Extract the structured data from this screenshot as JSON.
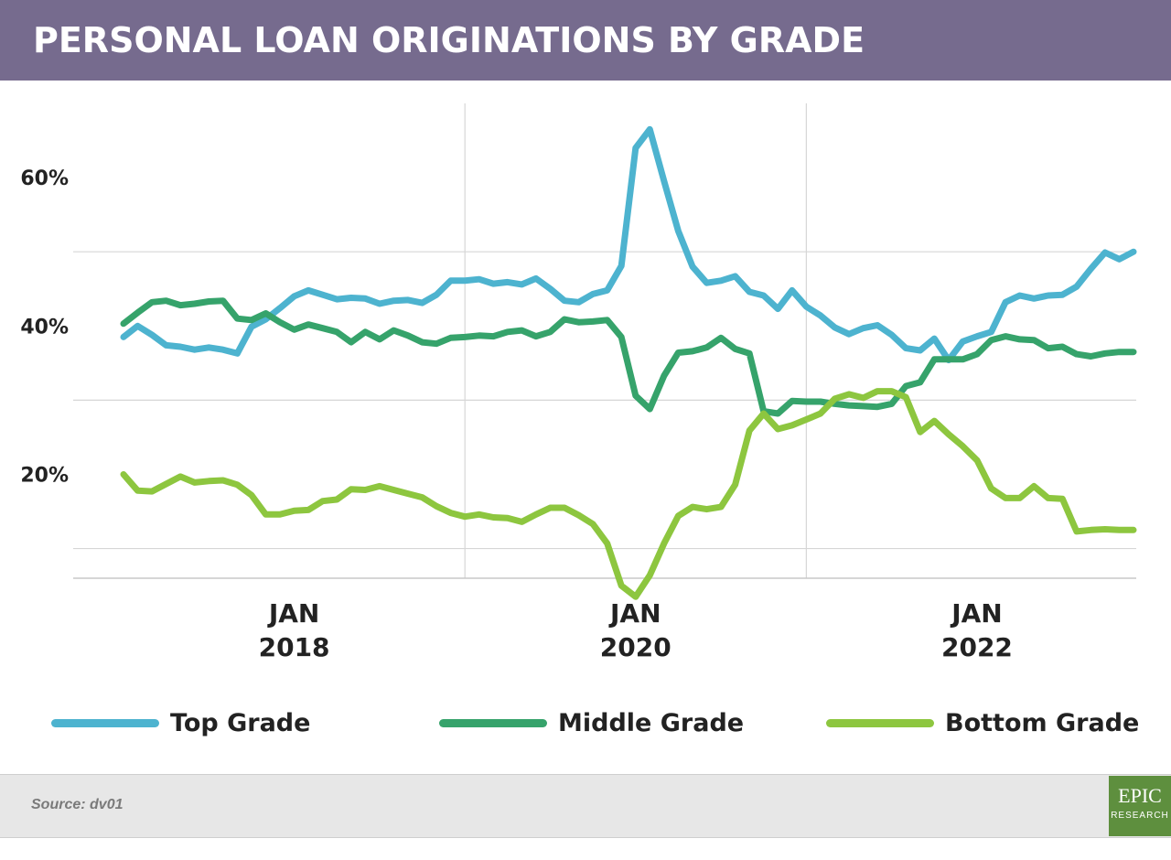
{
  "header": {
    "title": "PERSONAL LOAN ORIGINATIONS BY GRADE"
  },
  "footer": {
    "source": "Source: dv01",
    "logo_top": "EPIC",
    "logo_bottom": "RESEARCH"
  },
  "colors": {
    "header_bg": "#766b8e",
    "top_grade": "#4db3cf",
    "middle_grade": "#36a36b",
    "bottom_grade": "#8dc63f",
    "logo_bg": "#5e8f3e"
  },
  "chart_data": {
    "type": "line",
    "title": "PERSONAL LOAN ORIGINATIONS BY GRADE",
    "xlabel": "",
    "ylabel": "",
    "x_range": [
      "2017-01",
      "2022-12"
    ],
    "ylim": [
      6,
      70
    ],
    "y_ticks": [
      {
        "value": 20,
        "label": "20%"
      },
      {
        "value": 40,
        "label": "40%"
      },
      {
        "value": 60,
        "label": "60%"
      }
    ],
    "x_ticks": [
      {
        "date": "2018-01",
        "label_line1": "JAN",
        "label_line2": "2018"
      },
      {
        "date": "2020-01",
        "label_line1": "JAN",
        "label_line2": "2020"
      },
      {
        "date": "2022-01",
        "label_line1": "JAN",
        "label_line2": "2022"
      }
    ],
    "grid": true,
    "legend_position": "bottom",
    "series": [
      {
        "name": "Top Grade",
        "color": "#4db3cf",
        "x": [
          "2017-01",
          "2017-02",
          "2017-03",
          "2017-04",
          "2017-05",
          "2017-06",
          "2017-07",
          "2017-08",
          "2017-09",
          "2017-10",
          "2017-11",
          "2017-12",
          "2018-01",
          "2018-02",
          "2018-03",
          "2018-04",
          "2018-05",
          "2018-06",
          "2018-07",
          "2018-08",
          "2018-09",
          "2018-10",
          "2018-11",
          "2018-12",
          "2019-01",
          "2019-02",
          "2019-03",
          "2019-04",
          "2019-05",
          "2019-06",
          "2019-07",
          "2019-08",
          "2019-09",
          "2019-10",
          "2019-11",
          "2019-12",
          "2020-01",
          "2020-02",
          "2020-03",
          "2020-04",
          "2020-05",
          "2020-06",
          "2020-07",
          "2020-08",
          "2020-09",
          "2020-10",
          "2020-11",
          "2020-12",
          "2021-01",
          "2021-02",
          "2021-03",
          "2021-04",
          "2021-05",
          "2021-06",
          "2021-07",
          "2021-08",
          "2021-09",
          "2021-10",
          "2021-11",
          "2021-12",
          "2022-01",
          "2022-02",
          "2022-03",
          "2022-04",
          "2022-05",
          "2022-06",
          "2022-07",
          "2022-08",
          "2022-09",
          "2022-10",
          "2022-11",
          "2022-12"
        ],
        "values": [
          38.5,
          40,
          38.8,
          37.4,
          37.2,
          36.8,
          37.1,
          36.8,
          36.3,
          39.9,
          40.9,
          42.4,
          44,
          44.8,
          44.2,
          43.6,
          43.8,
          43.7,
          43,
          43.4,
          43.5,
          43.1,
          44.2,
          46.1,
          46.1,
          46.3,
          45.7,
          45.9,
          45.6,
          46.4,
          45,
          43.4,
          43.2,
          44.3,
          44.8,
          48.1,
          64,
          66.5,
          59.5,
          52.8,
          48,
          45.8,
          46.1,
          46.7,
          44.6,
          44.1,
          42.3,
          44.8,
          42.6,
          41.4,
          39.8,
          38.9,
          39.7,
          40.1,
          38.8,
          37,
          36.7,
          38.3,
          35.4,
          37.9,
          38.6,
          39.2,
          43.2,
          44.1,
          43.7,
          44.1,
          44.2,
          45.3,
          47.7,
          49.9,
          49,
          50
        ]
      },
      {
        "name": "Middle Grade",
        "color": "#36a36b",
        "x": [
          "2017-01",
          "2017-02",
          "2017-03",
          "2017-04",
          "2017-05",
          "2017-06",
          "2017-07",
          "2017-08",
          "2017-09",
          "2017-10",
          "2017-11",
          "2017-12",
          "2018-01",
          "2018-02",
          "2018-03",
          "2018-04",
          "2018-05",
          "2018-06",
          "2018-07",
          "2018-08",
          "2018-09",
          "2018-10",
          "2018-11",
          "2018-12",
          "2019-01",
          "2019-02",
          "2019-03",
          "2019-04",
          "2019-05",
          "2019-06",
          "2019-07",
          "2019-08",
          "2019-09",
          "2019-10",
          "2019-11",
          "2019-12",
          "2020-01",
          "2020-02",
          "2020-03",
          "2020-04",
          "2020-05",
          "2020-06",
          "2020-07",
          "2020-08",
          "2020-09",
          "2020-10",
          "2020-11",
          "2020-12",
          "2021-01",
          "2021-02",
          "2021-03",
          "2021-04",
          "2021-05",
          "2021-06",
          "2021-07",
          "2021-08",
          "2021-09",
          "2021-10",
          "2021-11",
          "2021-12",
          "2022-01",
          "2022-02",
          "2022-03",
          "2022-04",
          "2022-05",
          "2022-06",
          "2022-07",
          "2022-08",
          "2022-09",
          "2022-10",
          "2022-11",
          "2022-12"
        ],
        "values": [
          40.3,
          41.8,
          43.2,
          43.4,
          42.8,
          43,
          43.3,
          43.4,
          41,
          40.8,
          41.7,
          40.5,
          39.5,
          40.2,
          39.7,
          39.2,
          37.8,
          39.2,
          38.2,
          39.4,
          38.7,
          37.8,
          37.6,
          38.4,
          38.5,
          38.7,
          38.6,
          39.2,
          39.4,
          38.6,
          39.2,
          40.9,
          40.5,
          40.6,
          40.8,
          38.5,
          30.6,
          28.8,
          33.3,
          36.4,
          36.6,
          37.1,
          38.4,
          36.9,
          36.3,
          28.5,
          28.2,
          29.9,
          29.8,
          29.8,
          29.5,
          29.3,
          29.2,
          29.1,
          29.5,
          31.9,
          32.4,
          35.5,
          35.5,
          35.5,
          36.2,
          38.1,
          38.6,
          38.2,
          38.1,
          37,
          37.2,
          36.2,
          35.9,
          36.3,
          36.5,
          36.5
        ]
      },
      {
        "name": "Bottom Grade",
        "color": "#8dc63f",
        "x": [
          "2017-01",
          "2017-02",
          "2017-03",
          "2017-04",
          "2017-05",
          "2017-06",
          "2017-07",
          "2017-08",
          "2017-09",
          "2017-10",
          "2017-11",
          "2017-12",
          "2018-01",
          "2018-02",
          "2018-03",
          "2018-04",
          "2018-05",
          "2018-06",
          "2018-07",
          "2018-08",
          "2018-09",
          "2018-10",
          "2018-11",
          "2018-12",
          "2019-01",
          "2019-02",
          "2019-03",
          "2019-04",
          "2019-05",
          "2019-06",
          "2019-07",
          "2019-08",
          "2019-09",
          "2019-10",
          "2019-11",
          "2019-12",
          "2020-01",
          "2020-02",
          "2020-03",
          "2020-04",
          "2020-05",
          "2020-06",
          "2020-07",
          "2020-08",
          "2020-09",
          "2020-10",
          "2020-11",
          "2020-12",
          "2021-01",
          "2021-02",
          "2021-03",
          "2021-04",
          "2021-05",
          "2021-06",
          "2021-07",
          "2021-08",
          "2021-09",
          "2021-10",
          "2021-11",
          "2021-12",
          "2022-01",
          "2022-02",
          "2022-03",
          "2022-04",
          "2022-05",
          "2022-06",
          "2022-07",
          "2022-08",
          "2022-09",
          "2022-10",
          "2022-11",
          "2022-12"
        ],
        "values": [
          20,
          17.8,
          17.7,
          18.7,
          19.7,
          18.9,
          19.1,
          19.2,
          18.6,
          17.2,
          14.6,
          14.6,
          15.1,
          15.2,
          16.4,
          16.6,
          18,
          17.9,
          18.4,
          17.9,
          17.4,
          16.9,
          15.7,
          14.8,
          14.3,
          14.6,
          14.2,
          14.1,
          13.6,
          14.6,
          15.5,
          15.5,
          14.5,
          13.3,
          10.7,
          5,
          3.5,
          6.4,
          10.7,
          14.4,
          15.6,
          15.3,
          15.6,
          18.6,
          25.9,
          28.2,
          26.1,
          26.6,
          27.4,
          28.2,
          30.2,
          30.8,
          30.3,
          31.2,
          31.2,
          30.4,
          25.7,
          27.2,
          25.4,
          23.8,
          21.9,
          18.1,
          16.8,
          16.8,
          18.4,
          16.8,
          16.7,
          12.3,
          12.5,
          12.6,
          12.5,
          12.5
        ]
      }
    ]
  }
}
